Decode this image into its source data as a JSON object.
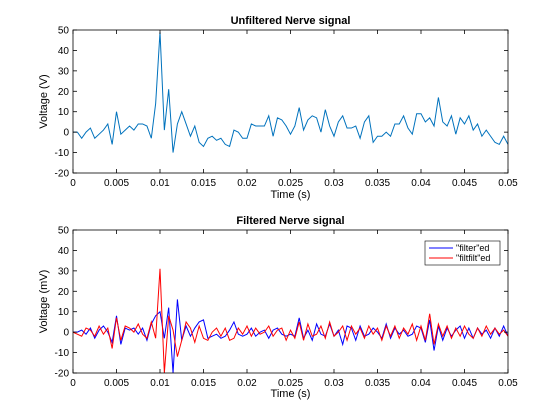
{
  "chart_data": [
    {
      "type": "line",
      "title": "Unfiltered Nerve signal",
      "xlabel": "Time (s)",
      "ylabel": "Voltage (V)",
      "xlim": [
        0,
        0.05
      ],
      "ylim": [
        -20,
        50
      ],
      "xticks": [
        0,
        0.005,
        0.01,
        0.015,
        0.02,
        0.025,
        0.03,
        0.035,
        0.04,
        0.045,
        0.05
      ],
      "xticklabels": [
        "0",
        "0.005",
        "0.01",
        "0.015",
        "0.02",
        "0.025",
        "0.03",
        "0.035",
        "0.04",
        "0.045",
        "0.05"
      ],
      "yticks": [
        -20,
        -10,
        0,
        10,
        20,
        30,
        40,
        50
      ],
      "yticklabels": [
        "-20",
        "-10",
        "0",
        "10",
        "20",
        "30",
        "40",
        "50"
      ],
      "grid": false,
      "series": [
        {
          "color": "#0072bd",
          "x": [
            0,
            0.0005,
            0.001,
            0.0015,
            0.002,
            0.0025,
            0.003,
            0.0035,
            0.004,
            0.0045,
            0.005,
            0.0055,
            0.006,
            0.0065,
            0.007,
            0.0075,
            0.008,
            0.0085,
            0.009,
            0.0095,
            0.01,
            0.0105,
            0.011,
            0.0115,
            0.012,
            0.0125,
            0.013,
            0.0135,
            0.014,
            0.0145,
            0.015,
            0.0155,
            0.016,
            0.0165,
            0.017,
            0.0175,
            0.018,
            0.0185,
            0.019,
            0.0195,
            0.02,
            0.0205,
            0.021,
            0.0215,
            0.022,
            0.0225,
            0.023,
            0.0235,
            0.024,
            0.0245,
            0.025,
            0.0255,
            0.026,
            0.0265,
            0.027,
            0.0275,
            0.028,
            0.0285,
            0.029,
            0.0295,
            0.03,
            0.0305,
            0.031,
            0.0315,
            0.032,
            0.0325,
            0.033,
            0.0335,
            0.034,
            0.0345,
            0.035,
            0.0355,
            0.036,
            0.0365,
            0.037,
            0.0375,
            0.038,
            0.0385,
            0.039,
            0.0395,
            0.04,
            0.0405,
            0.041,
            0.0415,
            0.042,
            0.0425,
            0.043,
            0.0435,
            0.044,
            0.0445,
            0.045,
            0.0455,
            0.046,
            0.0465,
            0.047,
            0.0475,
            0.048,
            0.0485,
            0.049,
            0.0495,
            0.05
          ],
          "y": [
            0,
            0,
            -3,
            0,
            2,
            -3,
            -1,
            1,
            4,
            -6,
            10,
            -1,
            1,
            3,
            1,
            4,
            4,
            3,
            -3,
            14,
            49,
            1,
            21,
            -10,
            4,
            10,
            4,
            -2,
            3,
            -5,
            -7,
            -3,
            -2,
            -4,
            -3,
            -6,
            -7,
            1,
            0,
            -3,
            -3,
            4,
            3,
            3,
            3,
            8,
            -2,
            7,
            6,
            3,
            -1,
            3,
            12,
            1,
            6,
            8,
            7,
            0,
            11,
            3,
            -2,
            5,
            8,
            2,
            2,
            3,
            -3,
            5,
            8,
            -5,
            -2,
            -2,
            0,
            -2,
            4,
            4,
            8,
            2,
            -1,
            9,
            9,
            5,
            7,
            3,
            17,
            5,
            3,
            8,
            -1,
            7,
            4,
            8,
            1,
            4,
            -2,
            1,
            -2,
            -5,
            -6,
            -2,
            -6
          ]
        }
      ]
    },
    {
      "type": "line",
      "title": "Filtered Nerve signal",
      "xlabel": "Time (s)",
      "ylabel": "Voltage (mV)",
      "xlim": [
        0,
        0.05
      ],
      "ylim": [
        -20,
        50
      ],
      "xticks": [
        0,
        0.005,
        0.01,
        0.015,
        0.02,
        0.025,
        0.03,
        0.035,
        0.04,
        0.045,
        0.05
      ],
      "xticklabels": [
        "0",
        "0.005",
        "0.01",
        "0.015",
        "0.02",
        "0.025",
        "0.03",
        "0.035",
        "0.04",
        "0.045",
        "0.05"
      ],
      "yticks": [
        -20,
        -10,
        0,
        10,
        20,
        30,
        40,
        50
      ],
      "yticklabels": [
        "-20",
        "-10",
        "0",
        "10",
        "20",
        "30",
        "40",
        "50"
      ],
      "grid": false,
      "legend": {
        "placement": "top-right",
        "entries": [
          "\"filter\"ed",
          "\"filtfilt\"ed"
        ]
      },
      "series": [
        {
          "name": "\"filter\"ed",
          "color": "#0000ff",
          "x": [
            0,
            0.0005,
            0.001,
            0.0015,
            0.002,
            0.0025,
            0.003,
            0.0035,
            0.004,
            0.0045,
            0.005,
            0.0055,
            0.006,
            0.0065,
            0.007,
            0.0075,
            0.008,
            0.0085,
            0.009,
            0.0095,
            0.01,
            0.0105,
            0.011,
            0.0115,
            0.012,
            0.0125,
            0.013,
            0.0135,
            0.014,
            0.0145,
            0.015,
            0.0155,
            0.016,
            0.0165,
            0.017,
            0.0175,
            0.018,
            0.0185,
            0.019,
            0.0195,
            0.02,
            0.0205,
            0.021,
            0.0215,
            0.022,
            0.0225,
            0.023,
            0.0235,
            0.024,
            0.0245,
            0.025,
            0.0255,
            0.026,
            0.0265,
            0.027,
            0.0275,
            0.028,
            0.0285,
            0.029,
            0.0295,
            0.03,
            0.0305,
            0.031,
            0.0315,
            0.032,
            0.0325,
            0.033,
            0.0335,
            0.034,
            0.0345,
            0.035,
            0.0355,
            0.036,
            0.0365,
            0.037,
            0.0375,
            0.038,
            0.0385,
            0.039,
            0.0395,
            0.04,
            0.0405,
            0.041,
            0.0415,
            0.042,
            0.0425,
            0.043,
            0.0435,
            0.044,
            0.0445,
            0.045,
            0.0455,
            0.046,
            0.0465,
            0.047,
            0.0475,
            0.048,
            0.0485,
            0.049,
            0.0495,
            0.05
          ],
          "y": [
            0,
            0,
            1,
            -1,
            2,
            -3,
            1,
            3,
            0,
            -5,
            8,
            -6,
            2,
            1,
            2,
            -1,
            2,
            -4,
            4,
            8,
            10,
            -3,
            12,
            -20,
            16,
            -4,
            3,
            -2,
            2,
            5,
            6,
            -3,
            -2,
            -1,
            -3,
            -2,
            1,
            5,
            -1,
            -2,
            -1,
            2,
            -2,
            0,
            1,
            -3,
            1,
            2,
            -1,
            -2,
            -1,
            -2,
            7,
            -3,
            1,
            -4,
            4,
            -1,
            -2,
            4,
            -2,
            1,
            -6,
            3,
            2,
            -4,
            3,
            -2,
            -1,
            2,
            0,
            -3,
            4,
            -3,
            2,
            -1,
            1,
            -2,
            -1,
            3,
            2,
            -5,
            6,
            -9,
            3,
            -4,
            2,
            -2,
            1,
            3,
            -3,
            2,
            -3,
            2,
            -1,
            1,
            -3,
            2,
            -2,
            3,
            -2
          ]
        },
        {
          "name": "\"filtfilt\"ed",
          "color": "#ff0000",
          "x": [
            0,
            0.0005,
            0.001,
            0.0015,
            0.002,
            0.0025,
            0.003,
            0.0035,
            0.004,
            0.0045,
            0.005,
            0.0055,
            0.006,
            0.0065,
            0.007,
            0.0075,
            0.008,
            0.0085,
            0.009,
            0.0095,
            0.01,
            0.0105,
            0.011,
            0.0115,
            0.012,
            0.0125,
            0.013,
            0.0135,
            0.014,
            0.0145,
            0.015,
            0.0155,
            0.016,
            0.0165,
            0.017,
            0.0175,
            0.018,
            0.0185,
            0.019,
            0.0195,
            0.02,
            0.0205,
            0.021,
            0.0215,
            0.022,
            0.0225,
            0.023,
            0.0235,
            0.024,
            0.0245,
            0.025,
            0.0255,
            0.026,
            0.0265,
            0.027,
            0.0275,
            0.028,
            0.0285,
            0.029,
            0.0295,
            0.03,
            0.0305,
            0.031,
            0.0315,
            0.032,
            0.0325,
            0.033,
            0.0335,
            0.034,
            0.0345,
            0.035,
            0.0355,
            0.036,
            0.0365,
            0.037,
            0.0375,
            0.038,
            0.0385,
            0.039,
            0.0395,
            0.04,
            0.0405,
            0.041,
            0.0415,
            0.042,
            0.0425,
            0.043,
            0.0435,
            0.044,
            0.0445,
            0.045,
            0.0455,
            0.046,
            0.0465,
            0.047,
            0.0475,
            0.048,
            0.0485,
            0.049,
            0.0495,
            0.05
          ],
          "y": [
            0,
            -1,
            -2,
            2,
            1,
            -2,
            3,
            -1,
            2,
            -8,
            7,
            -4,
            3,
            2,
            0,
            4,
            -1,
            -3,
            5,
            -3,
            31,
            -20,
            8,
            1,
            -12,
            -4,
            5,
            2,
            -5,
            3,
            -3,
            -4,
            0,
            2,
            -2,
            2,
            -4,
            -3,
            2,
            -1,
            3,
            -2,
            2,
            -1,
            0,
            3,
            -2,
            1,
            2,
            -4,
            1,
            -3,
            5,
            -4,
            4,
            -2,
            -1,
            3,
            -3,
            5,
            -2,
            0,
            3,
            -4,
            3,
            -1,
            2,
            -3,
            3,
            -1,
            2,
            -4,
            3,
            -2,
            3,
            -3,
            2,
            -1,
            4,
            -4,
            3,
            -4,
            9,
            -6,
            4,
            -2,
            3,
            -3,
            2,
            -2,
            3,
            -1,
            -3,
            2,
            -2,
            3,
            -1,
            2,
            -1,
            1,
            -2
          ]
        }
      ]
    }
  ]
}
